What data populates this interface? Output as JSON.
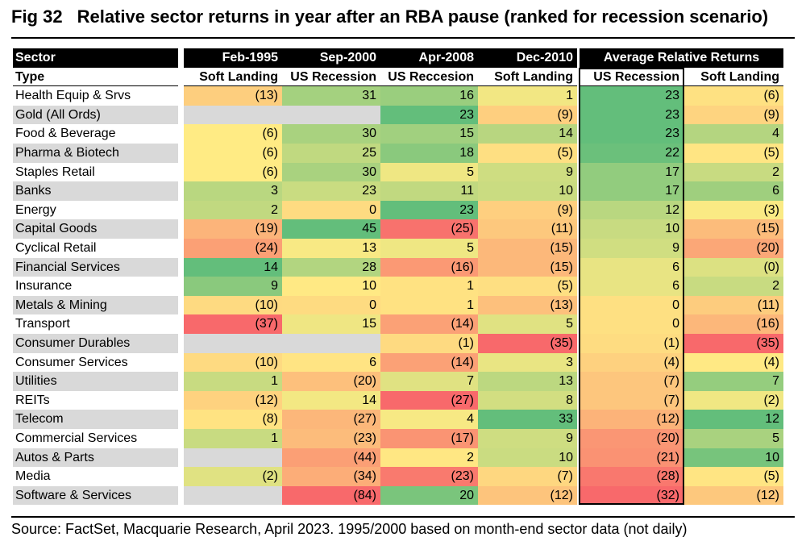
{
  "figure": {
    "number": "Fig 32",
    "title": "Relative sector returns in year after an RBA pause (ranked for recession scenario)",
    "source": "Source: FactSet, Macquarie Research, April 2023. 1995/2000 based on month-end sector data (not daily)"
  },
  "colors": {
    "header_bg": "#000000",
    "stripe": "#d9d9d9",
    "missing": "#d9d9d9",
    "scale_low": "#f8696b",
    "scale_mid": "#ffeb84",
    "scale_high": "#63be7b"
  },
  "chart_data": {
    "type": "table",
    "title": "Relative sector returns in year after an RBA pause (ranked for recession scenario)",
    "row_header": "Sector",
    "type_header": "Type",
    "group_header": "Average Relative Returns",
    "columns": [
      {
        "name": "Feb-1995",
        "type": "Soft Landing"
      },
      {
        "name": "Sep-2000",
        "type": "US Recession"
      },
      {
        "name": "Apr-2008",
        "type": "US Reccesion"
      },
      {
        "name": "Dec-2010",
        "type": "Soft Landing"
      },
      {
        "name": "",
        "type": "US Recession"
      },
      {
        "name": "",
        "type": "Soft Landing"
      }
    ],
    "rows": [
      {
        "sector": "Health Equip & Srvs",
        "values": [
          -13,
          31,
          16,
          1,
          23,
          -6
        ]
      },
      {
        "sector": "Gold (All Ords)",
        "values": [
          null,
          null,
          23,
          -9,
          23,
          -9
        ]
      },
      {
        "sector": "Food & Beverage",
        "values": [
          -6,
          30,
          15,
          14,
          23,
          4
        ]
      },
      {
        "sector": "Pharma & Biotech",
        "values": [
          -6,
          25,
          18,
          -5,
          22,
          -5
        ]
      },
      {
        "sector": "Staples Retail",
        "values": [
          -6,
          30,
          5,
          9,
          17,
          2
        ]
      },
      {
        "sector": "Banks",
        "values": [
          3,
          23,
          11,
          10,
          17,
          6
        ]
      },
      {
        "sector": "Energy",
        "values": [
          2,
          0,
          23,
          -9,
          12,
          -3
        ]
      },
      {
        "sector": "Capital Goods",
        "values": [
          -19,
          45,
          -25,
          -11,
          10,
          -15
        ]
      },
      {
        "sector": "Cyclical Retail",
        "values": [
          -24,
          13,
          5,
          -15,
          9,
          -20
        ]
      },
      {
        "sector": "Financial Services",
        "values": [
          14,
          28,
          -16,
          -15,
          6,
          0
        ]
      },
      {
        "sector": "Insurance",
        "values": [
          9,
          10,
          1,
          -5,
          6,
          2
        ]
      },
      {
        "sector": "Metals & Mining",
        "values": [
          -10,
          0,
          1,
          -13,
          0,
          -11
        ]
      },
      {
        "sector": "Transport",
        "values": [
          -37,
          15,
          -14,
          5,
          0,
          -16
        ]
      },
      {
        "sector": "Consumer Durables",
        "values": [
          null,
          null,
          -1,
          -35,
          -1,
          -35
        ]
      },
      {
        "sector": "Consumer Services",
        "values": [
          -10,
          6,
          -14,
          3,
          -4,
          -4
        ]
      },
      {
        "sector": "Utilities",
        "values": [
          1,
          -20,
          7,
          13,
          -7,
          7
        ]
      },
      {
        "sector": "REITs",
        "values": [
          -12,
          14,
          -27,
          8,
          -7,
          -2
        ]
      },
      {
        "sector": "Telecom",
        "values": [
          -8,
          -27,
          4,
          33,
          -12,
          12
        ]
      },
      {
        "sector": "Commercial Services",
        "values": [
          1,
          -23,
          -17,
          9,
          -20,
          5
        ]
      },
      {
        "sector": "Autos & Parts",
        "values": [
          null,
          -44,
          2,
          10,
          -21,
          10
        ]
      },
      {
        "sector": "Media",
        "values": [
          -2,
          -34,
          -23,
          -7,
          -28,
          -5
        ]
      },
      {
        "sector": "Software & Services",
        "values": [
          null,
          -84,
          20,
          -12,
          -32,
          -12
        ]
      }
    ],
    "display": [
      [
        "(13)",
        "31",
        "16",
        "1",
        "23",
        "(6)"
      ],
      [
        "",
        "",
        "23",
        "(9)",
        "23",
        "(9)"
      ],
      [
        "(6)",
        "30",
        "15",
        "14",
        "23",
        "4"
      ],
      [
        "(6)",
        "25",
        "18",
        "(5)",
        "22",
        "(5)"
      ],
      [
        "(6)",
        "30",
        "5",
        "9",
        "17",
        "2"
      ],
      [
        "3",
        "23",
        "11",
        "10",
        "17",
        "6"
      ],
      [
        "2",
        "0",
        "23",
        "(9)",
        "12",
        "(3)"
      ],
      [
        "(19)",
        "45",
        "(25)",
        "(11)",
        "10",
        "(15)"
      ],
      [
        "(24)",
        "13",
        "5",
        "(15)",
        "9",
        "(20)"
      ],
      [
        "14",
        "28",
        "(16)",
        "(15)",
        "6",
        "(0)"
      ],
      [
        "9",
        "10",
        "1",
        "(5)",
        "6",
        "2"
      ],
      [
        "(10)",
        "0",
        "1",
        "(13)",
        "0",
        "(11)"
      ],
      [
        "(37)",
        "15",
        "(14)",
        "5",
        "0",
        "(16)"
      ],
      [
        "",
        "",
        "(1)",
        "(35)",
        "(1)",
        "(35)"
      ],
      [
        "(10)",
        "6",
        "(14)",
        "3",
        "(4)",
        "(4)"
      ],
      [
        "1",
        "(20)",
        "7",
        "13",
        "(7)",
        "7"
      ],
      [
        "(12)",
        "14",
        "(27)",
        "8",
        "(7)",
        "(2)"
      ],
      [
        "(8)",
        "(27)",
        "4",
        "33",
        "(12)",
        "12"
      ],
      [
        "1",
        "(23)",
        "(17)",
        "9",
        "(20)",
        "5"
      ],
      [
        "",
        "(44)",
        "2",
        "10",
        "(21)",
        "10"
      ],
      [
        "(2)",
        "(34)",
        "(23)",
        "(7)",
        "(28)",
        "(5)"
      ],
      [
        "",
        "(84)",
        "20",
        "(12)",
        "(32)",
        "(12)"
      ]
    ]
  }
}
